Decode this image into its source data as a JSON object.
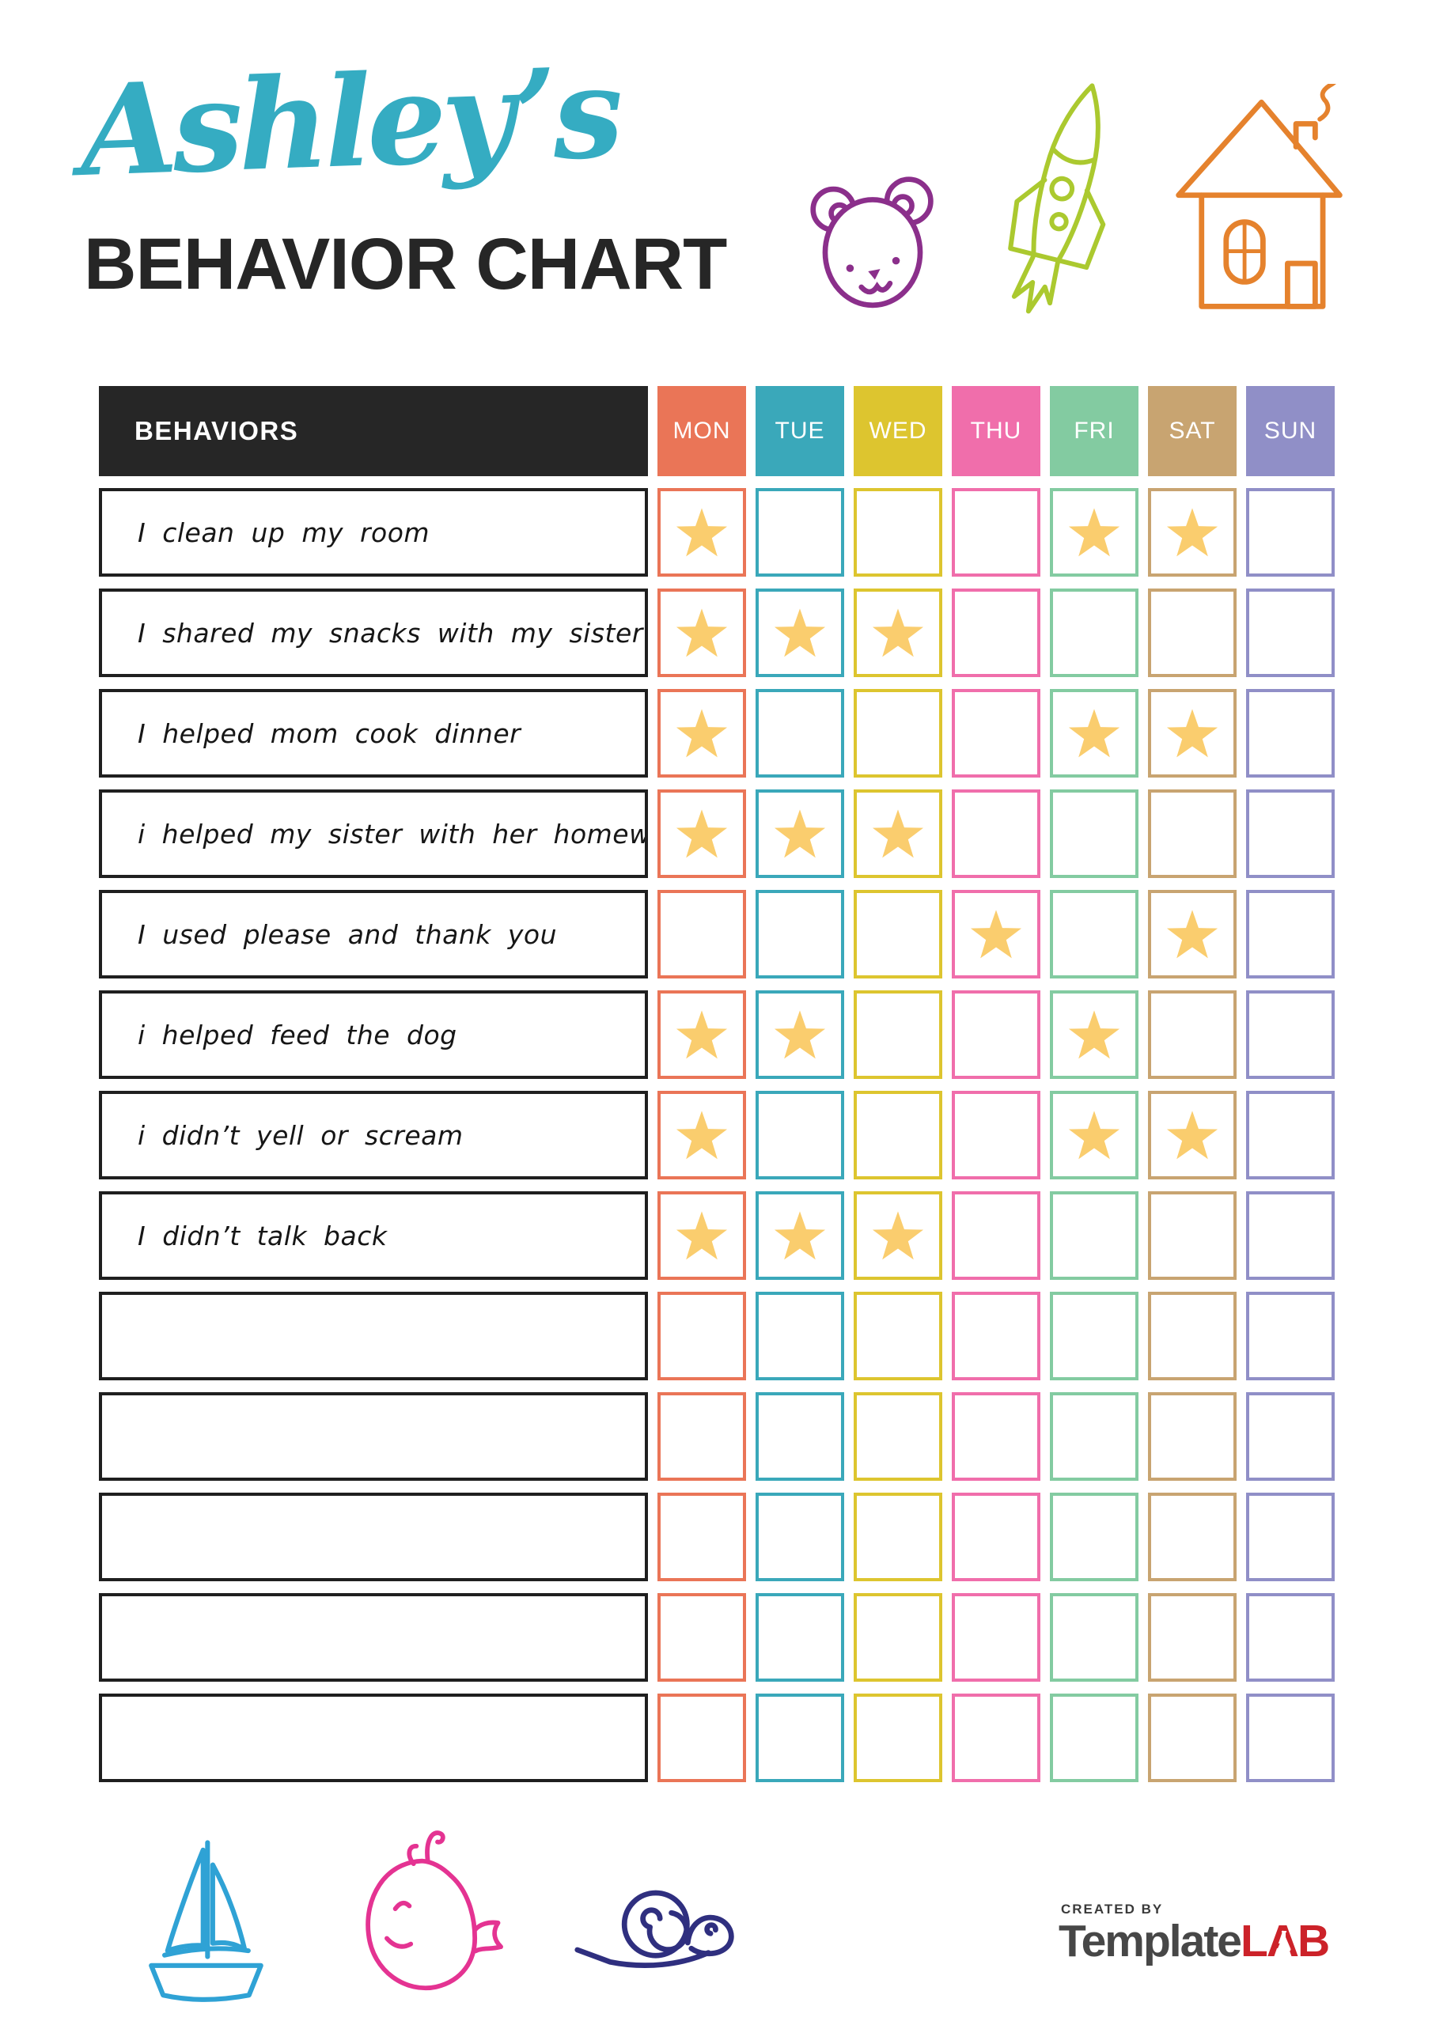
{
  "header": {
    "title_script": "Ashley’s",
    "title_main": "BEHAVIOR CHART"
  },
  "colors": {
    "title_script": "#35ACC2",
    "title_main": "#262626",
    "behaviors_header_bg": "#262626",
    "row_border": "#1F1F1F",
    "star": "#FACD6E"
  },
  "table": {
    "behaviors_header": "BEHAVIORS",
    "days": [
      {
        "label": "MON",
        "color": "#EA7557"
      },
      {
        "label": "TUE",
        "color": "#3AA8BA"
      },
      {
        "label": "WED",
        "color": "#DDC52F"
      },
      {
        "label": "THU",
        "color": "#F06EAB"
      },
      {
        "label": "FRI",
        "color": "#83CBA1"
      },
      {
        "label": "SAT",
        "color": "#C8A471"
      },
      {
        "label": "SUN",
        "color": "#908FC7"
      }
    ],
    "rows": [
      {
        "behavior": "I clean up my room",
        "stars": [
          1,
          0,
          0,
          0,
          1,
          1,
          0
        ]
      },
      {
        "behavior": "I shared my snacks with my sister",
        "stars": [
          1,
          1,
          1,
          0,
          0,
          0,
          0
        ]
      },
      {
        "behavior": "I helped mom cook dinner",
        "stars": [
          1,
          0,
          0,
          0,
          1,
          1,
          0
        ]
      },
      {
        "behavior": "i helped my sister with her homework",
        "stars": [
          1,
          1,
          1,
          0,
          0,
          0,
          0
        ]
      },
      {
        "behavior": "I used please and thank you",
        "stars": [
          0,
          0,
          0,
          1,
          0,
          1,
          0
        ]
      },
      {
        "behavior": "i helped feed the dog",
        "stars": [
          1,
          1,
          0,
          0,
          1,
          0,
          0
        ]
      },
      {
        "behavior": "i didn’t yell or scream",
        "stars": [
          1,
          0,
          0,
          0,
          1,
          1,
          0
        ]
      },
      {
        "behavior": "I didn’t talk back",
        "stars": [
          1,
          1,
          1,
          0,
          0,
          0,
          0
        ]
      },
      {
        "behavior": "",
        "stars": [
          0,
          0,
          0,
          0,
          0,
          0,
          0
        ]
      },
      {
        "behavior": "",
        "stars": [
          0,
          0,
          0,
          0,
          0,
          0,
          0
        ]
      },
      {
        "behavior": "",
        "stars": [
          0,
          0,
          0,
          0,
          0,
          0,
          0
        ]
      },
      {
        "behavior": "",
        "stars": [
          0,
          0,
          0,
          0,
          0,
          0,
          0
        ]
      },
      {
        "behavior": "",
        "stars": [
          0,
          0,
          0,
          0,
          0,
          0,
          0
        ]
      }
    ]
  },
  "decorations": {
    "bear_color": "#8B2F8B",
    "rocket_color": "#ABC92F",
    "house_color": "#E5822D",
    "boat_color": "#2FA2D5",
    "whale_color": "#E43392",
    "snail_color": "#2F2F7F"
  },
  "footer": {
    "created_by": "CREATED BY",
    "brand_first": "Template",
    "brand_second": "LAB",
    "brand_first_color": "#474747",
    "brand_second_color": "#CC2229"
  }
}
